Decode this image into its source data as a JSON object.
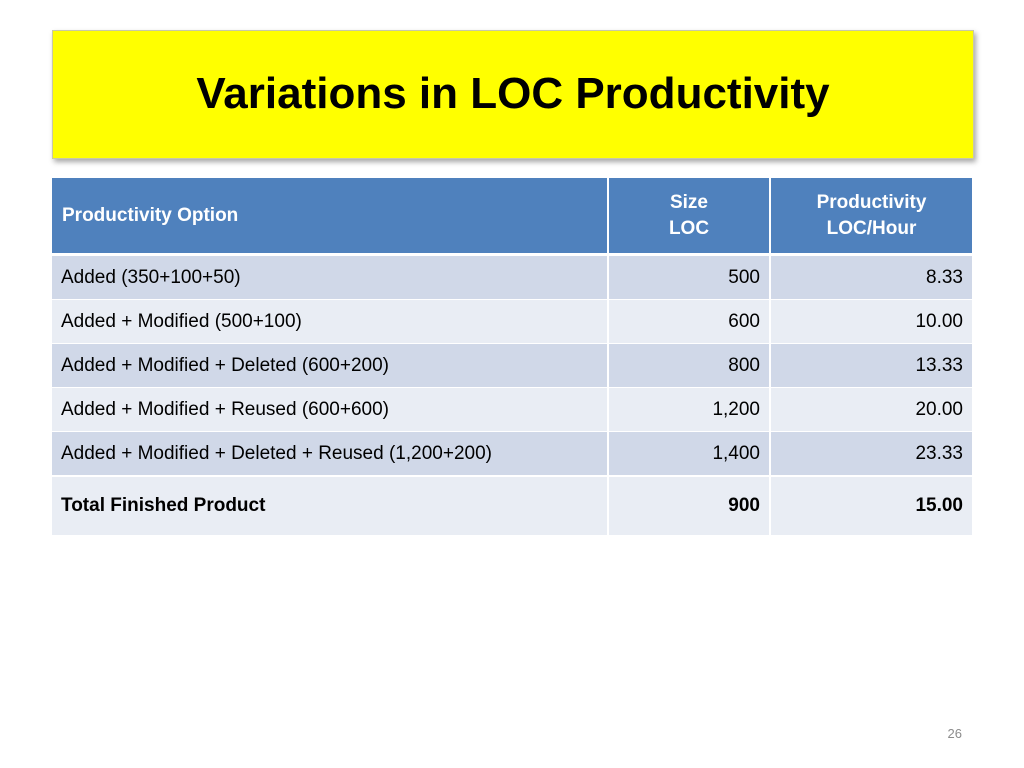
{
  "slide": {
    "title": "Variations in LOC Productivity",
    "page_number": "26"
  },
  "table": {
    "headers": {
      "option": "Productivity Option",
      "size_line1": "Size",
      "size_line2": "LOC",
      "prod_line1": "Productivity",
      "prod_line2": "LOC/Hour"
    },
    "rows": [
      {
        "option": "Added (350+100+50)",
        "size": "500",
        "productivity": "8.33"
      },
      {
        "option": "Added + Modified (500+100)",
        "size": "600",
        "productivity": "10.00"
      },
      {
        "option": "Added + Modified + Deleted  (600+200)",
        "size": "800",
        "productivity": "13.33"
      },
      {
        "option": "Added + Modified + Reused (600+600)",
        "size": "1,200",
        "productivity": "20.00"
      },
      {
        "option": "Added + Modified + Deleted + Reused (1,200+200)",
        "size": "1,400",
        "productivity": "23.33"
      }
    ],
    "total": {
      "option": "Total Finished Product",
      "size": "900",
      "productivity": "15.00"
    }
  },
  "colors": {
    "title_background": "#ffff00",
    "header_background": "#4f81bd",
    "row_band_dark": "#d0d8e8",
    "row_band_light": "#e9edf4"
  }
}
